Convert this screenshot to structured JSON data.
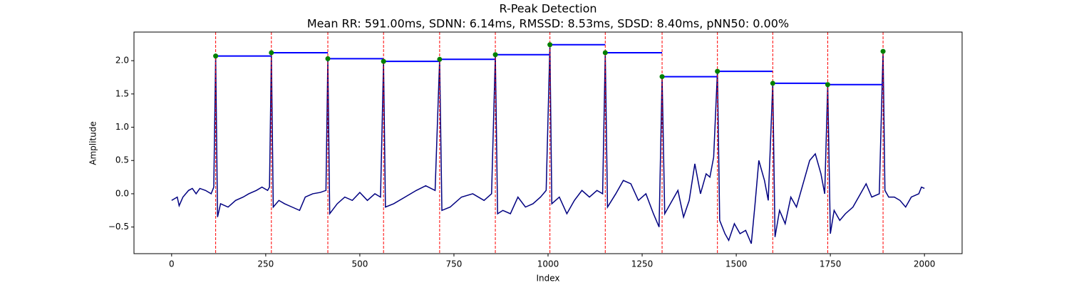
{
  "chart_data": {
    "type": "line",
    "title": "R-Peak Detection",
    "subtitle": "Mean RR: 591.00ms, SDNN: 6.14ms, RMSSD: 8.53ms, SDSD: 8.40ms, pNN50: 0.00%",
    "x_label": "Index",
    "y_label": "Amplitude",
    "xlim": [
      -100,
      2100
    ],
    "ylim": [
      -0.9,
      2.43
    ],
    "xticks": [
      0,
      250,
      500,
      750,
      1000,
      1250,
      1500,
      1750,
      2000
    ],
    "yticks": [
      {
        "value": -0.5,
        "label": "−0.5"
      },
      {
        "value": 0,
        "label": "0.0"
      },
      0.5,
      {
        "value": 1,
        "label": "1.0"
      },
      1.5,
      {
        "value": 2,
        "label": "2.0"
      }
    ],
    "signal": {
      "color": "#000080",
      "x": [
        0,
        15,
        20,
        30,
        45,
        55,
        65,
        75,
        90,
        105,
        112,
        117,
        122,
        130,
        150,
        170,
        190,
        205,
        225,
        240,
        255,
        260,
        265,
        270,
        285,
        300,
        320,
        340,
        355,
        375,
        395,
        410,
        415,
        420,
        440,
        460,
        480,
        500,
        520,
        540,
        555,
        563,
        568,
        590,
        620,
        650,
        675,
        700,
        712,
        718,
        740,
        770,
        800,
        830,
        850,
        860,
        866,
        880,
        900,
        920,
        940,
        960,
        980,
        995,
        1005,
        1010,
        1030,
        1050,
        1070,
        1090,
        1110,
        1130,
        1145,
        1152,
        1158,
        1180,
        1200,
        1220,
        1240,
        1260,
        1280,
        1295,
        1303,
        1310,
        1330,
        1345,
        1360,
        1375,
        1390,
        1405,
        1420,
        1430,
        1440,
        1450,
        1456,
        1470,
        1480,
        1495,
        1510,
        1525,
        1540,
        1550,
        1560,
        1575,
        1585,
        1597,
        1603,
        1615,
        1630,
        1645,
        1660,
        1680,
        1695,
        1710,
        1725,
        1735,
        1743,
        1750,
        1760,
        1775,
        1790,
        1810,
        1830,
        1845,
        1860,
        1880,
        1890,
        1895,
        1905,
        1920,
        1935,
        1950,
        1965,
        1985,
        1992,
        2000
      ],
      "values": [
        -0.1,
        -0.05,
        -0.18,
        -0.05,
        0.05,
        0.08,
        0.0,
        0.08,
        0.05,
        0.0,
        0.1,
        2.07,
        -0.35,
        -0.15,
        -0.2,
        -0.1,
        -0.05,
        0.0,
        0.05,
        0.1,
        0.05,
        0.1,
        2.12,
        -0.2,
        -0.1,
        -0.15,
        -0.2,
        -0.25,
        -0.05,
        0.0,
        0.02,
        0.05,
        2.03,
        -0.3,
        -0.15,
        -0.05,
        -0.1,
        0.02,
        -0.1,
        0.0,
        -0.05,
        1.99,
        -0.2,
        -0.15,
        -0.05,
        0.05,
        0.12,
        0.05,
        2.02,
        -0.25,
        -0.2,
        -0.05,
        0.0,
        -0.1,
        0.0,
        2.09,
        -0.3,
        -0.25,
        -0.3,
        -0.05,
        -0.2,
        -0.15,
        -0.05,
        0.05,
        2.24,
        -0.15,
        -0.05,
        -0.3,
        -0.1,
        0.05,
        -0.05,
        0.05,
        0.0,
        2.12,
        -0.2,
        0.0,
        0.2,
        0.15,
        -0.1,
        0.0,
        -0.3,
        -0.5,
        1.76,
        -0.3,
        -0.1,
        0.05,
        -0.35,
        -0.1,
        0.45,
        0.0,
        0.3,
        0.25,
        0.55,
        1.84,
        -0.4,
        -0.6,
        -0.7,
        -0.45,
        -0.6,
        -0.55,
        -0.75,
        -0.15,
        0.5,
        0.2,
        -0.1,
        1.66,
        -0.65,
        -0.25,
        -0.45,
        -0.05,
        -0.2,
        0.2,
        0.5,
        0.6,
        0.3,
        0.0,
        1.64,
        -0.6,
        -0.25,
        -0.4,
        -0.3,
        -0.2,
        0.0,
        0.15,
        -0.05,
        0.0,
        2.14,
        0.05,
        -0.05,
        -0.05,
        -0.1,
        -0.2,
        -0.05,
        0.0,
        0.1,
        0.08
      ]
    },
    "peaks": {
      "color": "#008000",
      "line_color": "#0000ff",
      "marker_color": "#ff0000",
      "x": [
        117,
        265,
        415,
        563,
        712,
        860,
        1005,
        1152,
        1303,
        1450,
        1597,
        1743,
        1890
      ],
      "values": [
        2.07,
        2.12,
        2.03,
        1.99,
        2.02,
        2.09,
        2.24,
        2.12,
        1.76,
        1.84,
        1.66,
        1.64,
        2.14
      ]
    }
  }
}
